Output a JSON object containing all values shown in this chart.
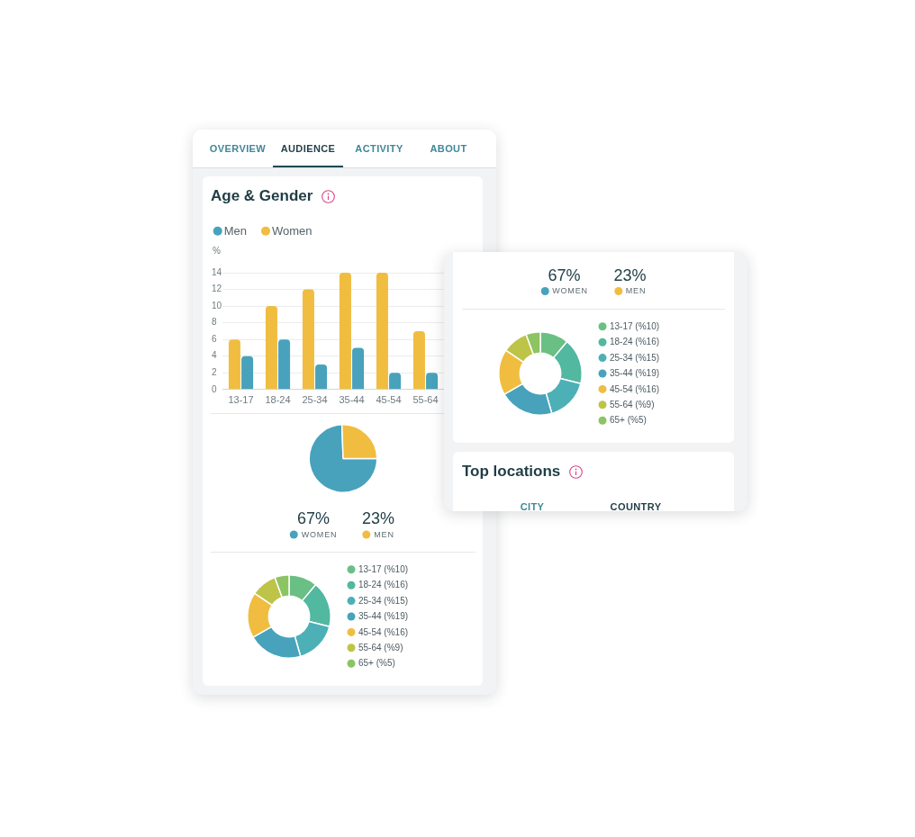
{
  "chart_data": [
    {
      "type": "bar",
      "title": "Age & Gender",
      "annotations": [
        "OVERVIEW",
        "AUDIENCE",
        "ACTIVITY",
        "ABOUT"
      ],
      "categories": [
        "13-17",
        "18-24",
        "25-34",
        "35-44",
        "45-54",
        "55-64"
      ],
      "series": [
        {
          "name": "Women",
          "color": "#f0bd40",
          "values": [
            6,
            10,
            12,
            14,
            14,
            7
          ]
        },
        {
          "name": "Men",
          "color": "#48a2bc",
          "values": [
            4,
            6,
            3,
            5,
            2,
            2
          ]
        }
      ],
      "ylabel": "%",
      "ylim": [
        0,
        14
      ],
      "yticks": [
        0,
        2,
        4,
        6,
        8,
        10,
        12,
        14
      ],
      "grid": "y",
      "legend": "top left"
    },
    {
      "type": "pie",
      "categories": [
        "WOMEN",
        "MEN"
      ],
      "values": [
        67,
        23
      ],
      "colors": [
        "#48a2bc",
        "#f0bd40"
      ],
      "value_labels": [
        "67%",
        "23%"
      ],
      "legend": "bottom"
    },
    {
      "type": "donut",
      "categories": [
        "13-17 (%10)",
        "18-24 (%16)",
        "25-34 (%15)",
        "35-44 (%19)",
        "45-54 (%16)",
        "55-64 (%9)",
        "65+ (%5)"
      ],
      "values": [
        10,
        16,
        15,
        19,
        16,
        9,
        5
      ],
      "colors": [
        "#6abf85",
        "#52b8a0",
        "#4db0b6",
        "#48a2bc",
        "#f0bd40",
        "#bdc448",
        "#8dc462"
      ],
      "legend": "right"
    },
    {
      "type": "other",
      "annotations": [
        "67%",
        "23%",
        "WOMEN",
        "MEN"
      ]
    },
    {
      "type": "donut",
      "categories": [
        "13-17 (%10)",
        "18-24 (%16)",
        "25-34 (%15)",
        "35-44 (%19)",
        "45-54 (%16)",
        "55-64 (%9)",
        "65+ (%5)"
      ],
      "values": [
        10,
        16,
        15,
        19,
        16,
        9,
        5
      ],
      "colors": [
        "#6abf85",
        "#52b8a0",
        "#4db0b6",
        "#48a2bc",
        "#f0bd40",
        "#bdc448",
        "#8dc462"
      ],
      "legend": "right"
    },
    {
      "type": "other",
      "title": "Top locations",
      "annotations": [
        "CITY",
        "COUNTRY"
      ]
    }
  ]
}
